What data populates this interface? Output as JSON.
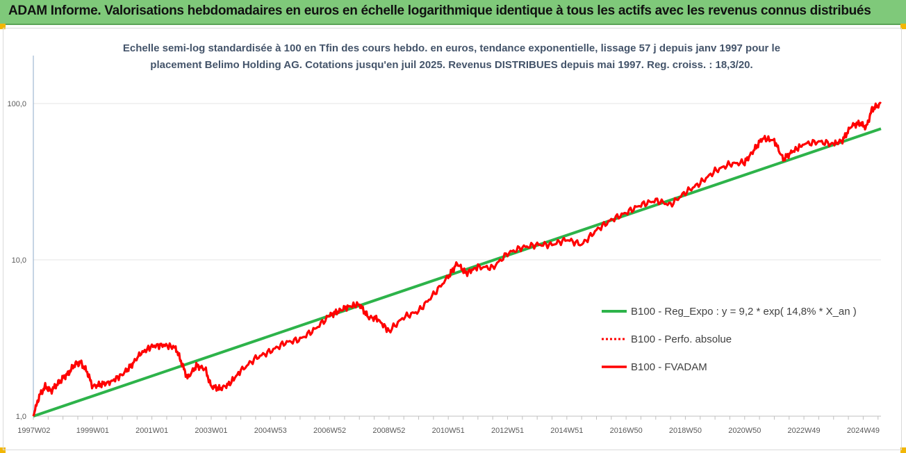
{
  "header": {
    "title": "ADAM Informe. Valorisations hebdomadaires en euros en échelle logarithmique identique à tous les actifs avec les revenus connus distribués"
  },
  "chart_data": {
    "type": "line",
    "title_line1": "Echelle semi-log standardisée à 100 en Tfin des cours hebdo. en euros, tendance exponentielle, lissage 57 j depuis janv 1997 pour le",
    "title_line2": "placement Belimo Holding AG. Cotations jusqu'en juil 2025. Revenus DISTRIBUES depuis mai 1997. Reg. croiss. : 18,3/20.",
    "y_scale": "log",
    "ylim": [
      1,
      100
    ],
    "y_tick_labels": [
      "1,0",
      "10,0",
      "100,0"
    ],
    "y_tick_values": [
      1,
      10,
      100
    ],
    "x_range": [
      1997.0,
      2025.6
    ],
    "x_tick_labels": [
      "1997W02",
      "1999W01",
      "2001W01",
      "2003W01",
      "2004W53",
      "2006W52",
      "2008W52",
      "2010W51",
      "2012W51",
      "2014W51",
      "2016W50",
      "2018W50",
      "2020W50",
      "2022W49",
      "2024W49"
    ],
    "x_tick_values": [
      1997.02,
      1999.0,
      2001.0,
      2003.0,
      2005.0,
      2007.0,
      2009.0,
      2011.0,
      2013.0,
      2015.0,
      2017.0,
      2019.0,
      2021.0,
      2023.0,
      2025.0
    ],
    "grid": "horizontal",
    "legend_position": "right",
    "series": [
      {
        "name": "B100 - Reg_Expo : y = 9,2 * exp( 14,8% *  X_an )",
        "color": "#2db34a",
        "style": "solid",
        "x": [
          1997.0,
          2025.6
        ],
        "y": [
          1.0,
          69
        ]
      },
      {
        "name": "B100 - Perfo. absolue",
        "color": "#ff0000",
        "style": "dotted",
        "x": [],
        "y": []
      },
      {
        "name": "B100 - FVADAM",
        "color": "#ff0000",
        "style": "solid",
        "x": [
          1997.0,
          1997.2,
          1997.4,
          1997.6,
          1997.8,
          1998.0,
          1998.2,
          1998.4,
          1998.6,
          1998.8,
          1999.0,
          1999.3,
          1999.6,
          2000.0,
          2000.3,
          2000.6,
          2001.0,
          2001.4,
          2001.8,
          2002.0,
          2002.2,
          2002.5,
          2002.8,
          2003.0,
          2003.3,
          2003.6,
          2004.0,
          2004.5,
          2005.0,
          2005.5,
          2006.0,
          2006.5,
          2007.0,
          2007.3,
          2007.6,
          2008.0,
          2008.3,
          2008.6,
          2009.0,
          2009.5,
          2010.0,
          2010.5,
          2011.0,
          2011.3,
          2011.6,
          2012.0,
          2012.5,
          2013.0,
          2013.5,
          2014.0,
          2014.5,
          2015.0,
          2015.5,
          2016.0,
          2016.5,
          2017.0,
          2017.5,
          2018.0,
          2018.5,
          2019.0,
          2019.5,
          2020.0,
          2020.5,
          2021.0,
          2021.3,
          2021.6,
          2022.0,
          2022.3,
          2022.6,
          2023.0,
          2023.5,
          2024.0,
          2024.3,
          2024.6,
          2024.9,
          2025.1,
          2025.3,
          2025.6
        ],
        "y": [
          1.0,
          1.35,
          1.55,
          1.45,
          1.6,
          1.75,
          1.9,
          2.15,
          2.2,
          1.95,
          1.55,
          1.6,
          1.65,
          1.85,
          2.1,
          2.5,
          2.8,
          2.85,
          2.75,
          2.2,
          1.75,
          2.1,
          2.0,
          1.55,
          1.5,
          1.6,
          1.95,
          2.35,
          2.6,
          2.95,
          3.1,
          3.6,
          4.4,
          4.7,
          5.0,
          5.2,
          4.3,
          4.2,
          3.5,
          4.3,
          4.7,
          6.0,
          7.8,
          9.5,
          8.2,
          9.0,
          8.9,
          11.0,
          12.0,
          12.5,
          12.5,
          13.5,
          12.5,
          15.5,
          18.0,
          20.0,
          22.5,
          24.0,
          22.5,
          27.0,
          31.0,
          37.0,
          41.0,
          42.0,
          50.0,
          60.0,
          58.0,
          44.0,
          49.0,
          55.0,
          57.0,
          55.0,
          58.0,
          72.0,
          75.0,
          70.0,
          92.0,
          100.0
        ]
      }
    ]
  }
}
